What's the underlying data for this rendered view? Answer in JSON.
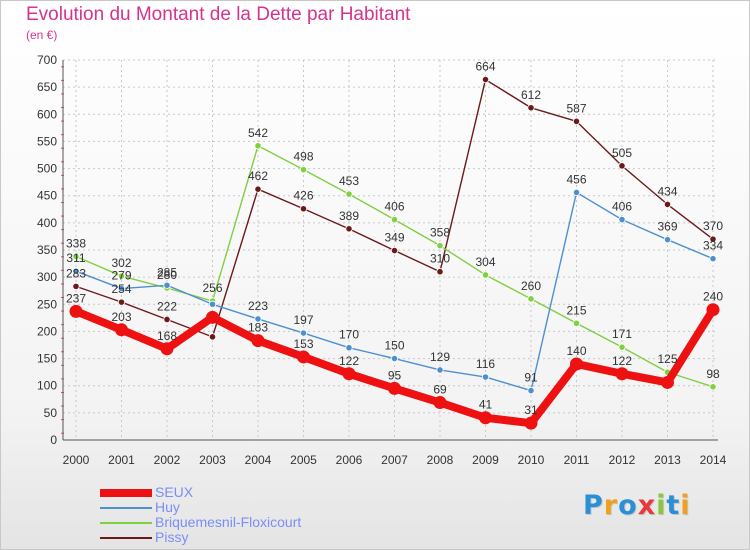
{
  "header": {
    "title": "Evolution du Montant de la Dette par Habitant",
    "subtitle": "(en €)"
  },
  "colors": {
    "title": "#d6338f",
    "legend_text": "#7a8ef5",
    "grid": "#c8c8c8",
    "axis_ticks": "#e0507a"
  },
  "logo": {
    "letters": [
      {
        "char": "P",
        "color": "#2a8fd6"
      },
      {
        "char": "r",
        "color": "#f0a020"
      },
      {
        "char": "o",
        "color": "#2a8fd6"
      },
      {
        "char": "x",
        "color": "#e83a3a"
      },
      {
        "char": "i",
        "color": "#8cc63f"
      },
      {
        "char": "t",
        "color": "#2a8fd6"
      },
      {
        "char": "i",
        "color": "#f0a020"
      }
    ]
  },
  "chart_data": {
    "type": "line",
    "title": "Evolution du Montant de la Dette par Habitant",
    "subtitle": "(en €)",
    "xlabel": "",
    "ylabel": "",
    "x": [
      "2000",
      "2001",
      "2002",
      "2003",
      "2004",
      "2005",
      "2006",
      "2007",
      "2008",
      "2009",
      "2010",
      "2011",
      "2012",
      "2013",
      "2014"
    ],
    "ylim": [
      0,
      700
    ],
    "yticks": [
      0,
      50,
      100,
      150,
      200,
      250,
      300,
      350,
      400,
      450,
      500,
      550,
      600,
      650,
      700
    ],
    "grid": true,
    "legend_position": "bottom",
    "series": [
      {
        "name": "SEUX",
        "color": "#ee1111",
        "values": [
          237,
          203,
          168,
          226,
          183,
          153,
          122,
          95,
          69,
          41,
          31,
          140,
          122,
          106,
          240
        ],
        "labels": [
          "237",
          "203",
          "168",
          "",
          "183",
          "153",
          "122",
          "95",
          "69",
          "41",
          "31",
          "140",
          "122",
          "",
          "240"
        ]
      },
      {
        "name": "Huy",
        "color": "#4e90cf",
        "values": [
          311,
          279,
          285,
          250,
          223,
          197,
          170,
          150,
          129,
          116,
          91,
          456,
          406,
          369,
          334
        ],
        "labels": [
          "311",
          "279",
          "285",
          "",
          "223",
          "197",
          "170",
          "150",
          "129",
          "116",
          "91",
          "456",
          "406",
          "369",
          "334"
        ]
      },
      {
        "name": "Briquemesnil-Floxicourt",
        "color": "#80d040",
        "values": [
          338,
          302,
          280,
          256,
          542,
          498,
          453,
          406,
          358,
          304,
          260,
          215,
          171,
          125,
          98
        ],
        "labels": [
          "338",
          "302",
          "280",
          "256",
          "542",
          "498",
          "453",
          "406",
          "358",
          "304",
          "260",
          "215",
          "171",
          "125",
          "98"
        ]
      },
      {
        "name": "Pissy",
        "color": "#6b1a1a",
        "values": [
          283,
          254,
          222,
          190,
          462,
          426,
          389,
          349,
          310,
          664,
          612,
          587,
          505,
          434,
          370
        ],
        "labels": [
          "283",
          "254",
          "222",
          "",
          "462",
          "426",
          "389",
          "349",
          "310",
          "664",
          "612",
          "587",
          "505",
          "434",
          "370"
        ]
      }
    ]
  }
}
